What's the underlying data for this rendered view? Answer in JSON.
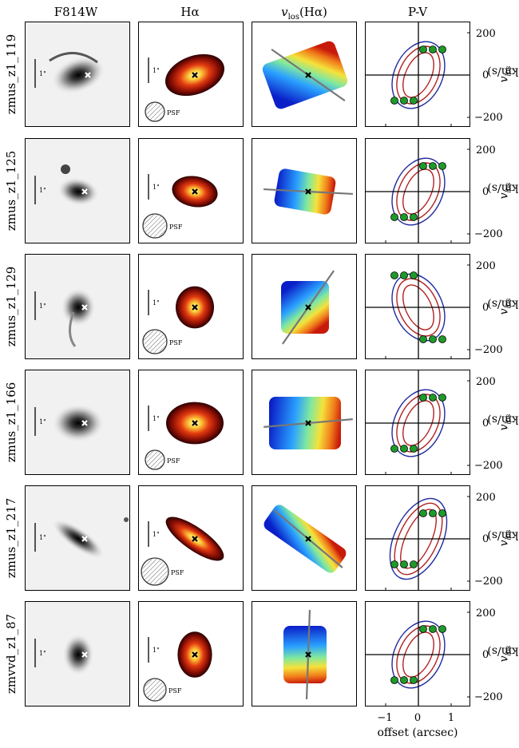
{
  "columns": {
    "c1": "F814W",
    "c2": "Hα",
    "c3_main": "v",
    "c3_sub": "los",
    "c3_tail": "(Hα)",
    "c4": "P-V"
  },
  "rows": [
    {
      "name": "zmus_z1_119"
    },
    {
      "name": "zmus_z1_125"
    },
    {
      "name": "zmus_z1_129"
    },
    {
      "name": "zmus_z1_166"
    },
    {
      "name": "zmus_z1_217"
    },
    {
      "name": "zmvvd_z1_87"
    }
  ],
  "labels": {
    "scale": "1\"",
    "psf": "PSF",
    "ylabel_main": "v",
    "ylabel_sub": "los",
    "ylabel_unit": "(km/s)",
    "xlabel": "offset (arcsec)"
  },
  "yticks": [
    "200",
    "0",
    "−200"
  ],
  "xticks": [
    "−1",
    "0",
    "1"
  ],
  "colors": {
    "contour_red": "#b22222",
    "contour_blue": "#1f2a9e",
    "points": "#1e9a2a"
  }
}
